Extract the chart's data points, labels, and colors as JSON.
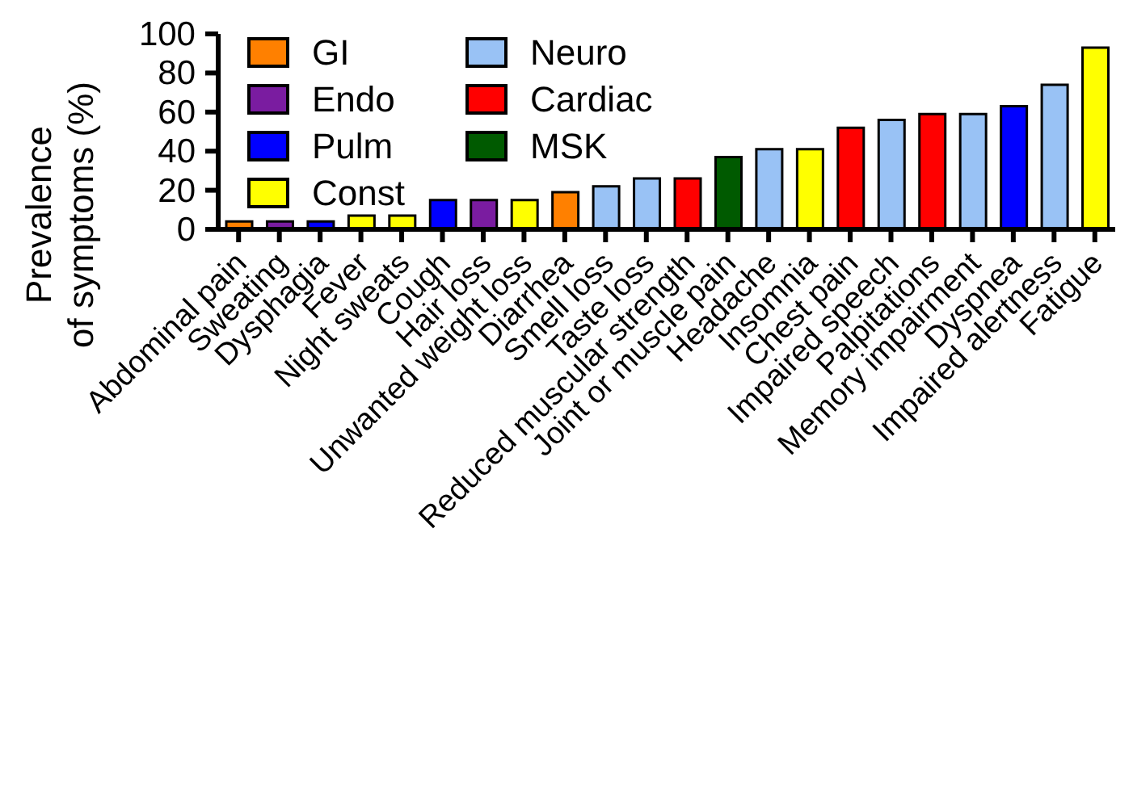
{
  "chart_data": {
    "type": "bar",
    "ylabel": "Prevalence\nof symptoms (%)",
    "stacked": true,
    "legend": "top left",
    "grid": false,
    "categories": [
      "Abdominal pain",
      "Sweating",
      "Dysphagia",
      "Fever",
      "Night sweats",
      "Cough",
      "Hair loss",
      "Unwanted weight loss",
      "Diarrhea",
      "Smell loss",
      "Taste loss",
      "Reduced muscular strength",
      "Joint or muscle pain",
      "Headache",
      "Insomnia",
      "Chest pain",
      "Impaired speech",
      "Palpitations",
      "Memory impairment",
      "Dyspnea",
      "Impaired alertness",
      "Fatigue"
    ],
    "ylim": [
      0,
      100
    ],
    "yticks": [
      0,
      20,
      40,
      60,
      80,
      100
    ],
    "series": [
      {
        "name": "GI",
        "color": "#ff8000",
        "values": [
          4,
          null,
          null,
          null,
          null,
          null,
          null,
          null,
          19,
          null,
          null,
          null,
          null,
          null,
          null,
          null,
          null,
          null,
          null,
          null,
          null,
          null
        ]
      },
      {
        "name": "Endo",
        "color": "#7a1ca0",
        "values": [
          null,
          4,
          null,
          null,
          null,
          null,
          15,
          null,
          null,
          null,
          null,
          null,
          null,
          null,
          null,
          null,
          null,
          null,
          null,
          null,
          null,
          null
        ]
      },
      {
        "name": "Pulm",
        "color": "#0000ff",
        "values": [
          null,
          null,
          4,
          null,
          null,
          15,
          null,
          null,
          null,
          null,
          null,
          null,
          null,
          null,
          null,
          null,
          null,
          null,
          null,
          63,
          null,
          null
        ]
      },
      {
        "name": "Const",
        "color": "#ffff00",
        "values": [
          null,
          null,
          null,
          7,
          7,
          null,
          null,
          15,
          null,
          null,
          null,
          null,
          null,
          null,
          41,
          null,
          null,
          null,
          null,
          null,
          null,
          93
        ]
      },
      {
        "name": "Neuro",
        "color": "#99c2f5",
        "values": [
          null,
          null,
          null,
          null,
          null,
          null,
          null,
          null,
          null,
          22,
          26,
          null,
          null,
          41,
          null,
          null,
          56,
          null,
          59,
          null,
          74,
          null
        ]
      },
      {
        "name": "Cardiac",
        "color": "#ff0000",
        "values": [
          null,
          null,
          null,
          null,
          null,
          null,
          null,
          null,
          null,
          null,
          null,
          26,
          null,
          null,
          null,
          52,
          null,
          59,
          null,
          null,
          null,
          null
        ]
      },
      {
        "name": "MSK",
        "color": "#005a00",
        "values": [
          null,
          null,
          null,
          null,
          null,
          null,
          null,
          null,
          null,
          null,
          null,
          null,
          37,
          null,
          null,
          null,
          null,
          null,
          null,
          null,
          null,
          null
        ]
      }
    ]
  }
}
